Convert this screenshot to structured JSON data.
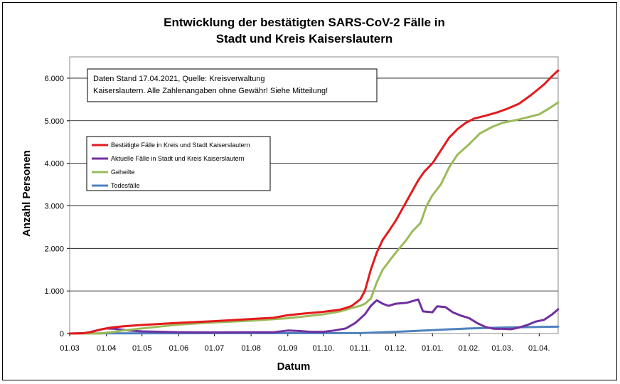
{
  "chart_data": {
    "type": "line",
    "title_lines": [
      "Entwicklung der bestätigten SARS-CoV-2 Fälle in",
      "Stadt und Kreis Kaiserslautern"
    ],
    "xlabel": "Datum",
    "ylabel": "Anzahl Personen",
    "ylim": [
      0,
      6500
    ],
    "y_ticks": [
      0,
      1000,
      2000,
      3000,
      4000,
      5000,
      6000
    ],
    "y_tick_labels": [
      "0",
      "1.000",
      "2.000",
      "3.000",
      "4.000",
      "5.000",
      "6.000"
    ],
    "x_range": [
      "2020-03-01",
      "2021-04-17"
    ],
    "x_ticks": [
      "2020-03-01",
      "2020-04-01",
      "2020-05-01",
      "2020-06-01",
      "2020-07-01",
      "2020-08-01",
      "2020-09-01",
      "2020-10-01",
      "2020-11-01",
      "2020-12-01",
      "2021-01-01",
      "2021-02-01",
      "2021-03-01",
      "2021-04-01"
    ],
    "x_tick_labels": [
      "01.03",
      "01.04",
      "01.05",
      "01.06",
      "01.07",
      "01.08",
      "01.09",
      "01.10.",
      "01.11.",
      "01.12.",
      "01.01.",
      "01.02.",
      "01.03.",
      "01.04."
    ],
    "grid": "horizontal",
    "legend": "top-left",
    "annotation_lines": [
      "Daten Stand 17.04.2021, Quelle: Kreisverwaltung",
      "Kaiserslautern. Alle Zahlenangaben ohne Gewähr! Siehe Mitteilung!"
    ],
    "series": [
      {
        "name": "Bestätigte Fälle in Kreis und Stadt Kaiserslautern",
        "color": "#e31a1c",
        "points": [
          [
            "2020-03-01",
            0
          ],
          [
            "2020-03-12",
            5
          ],
          [
            "2020-03-20",
            40
          ],
          [
            "2020-03-28",
            100
          ],
          [
            "2020-04-05",
            140
          ],
          [
            "2020-04-15",
            170
          ],
          [
            "2020-05-01",
            200
          ],
          [
            "2020-06-01",
            250
          ],
          [
            "2020-07-01",
            290
          ],
          [
            "2020-08-01",
            340
          ],
          [
            "2020-08-20",
            370
          ],
          [
            "2020-09-01",
            430
          ],
          [
            "2020-09-15",
            470
          ],
          [
            "2020-10-01",
            510
          ],
          [
            "2020-10-15",
            560
          ],
          [
            "2020-10-20",
            600
          ],
          [
            "2020-10-25",
            650
          ],
          [
            "2020-11-01",
            800
          ],
          [
            "2020-11-05",
            1000
          ],
          [
            "2020-11-10",
            1500
          ],
          [
            "2020-11-15",
            1900
          ],
          [
            "2020-11-20",
            2200
          ],
          [
            "2020-11-25",
            2400
          ],
          [
            "2020-12-01",
            2650
          ],
          [
            "2020-12-05",
            2850
          ],
          [
            "2020-12-10",
            3100
          ],
          [
            "2020-12-15",
            3350
          ],
          [
            "2020-12-20",
            3600
          ],
          [
            "2020-12-25",
            3800
          ],
          [
            "2021-01-01",
            4000
          ],
          [
            "2021-01-08",
            4300
          ],
          [
            "2021-01-15",
            4600
          ],
          [
            "2021-01-22",
            4800
          ],
          [
            "2021-01-29",
            4950
          ],
          [
            "2021-02-05",
            5050
          ],
          [
            "2021-02-15",
            5120
          ],
          [
            "2021-02-25",
            5200
          ],
          [
            "2021-03-05",
            5280
          ],
          [
            "2021-03-15",
            5400
          ],
          [
            "2021-03-25",
            5600
          ],
          [
            "2021-04-05",
            5850
          ],
          [
            "2021-04-12",
            6050
          ],
          [
            "2021-04-17",
            6180
          ]
        ]
      },
      {
        "name": "Aktuelle Fälle in Stadt und Kreis Kaiserslautern",
        "color": "#7030a0",
        "points": [
          [
            "2020-03-01",
            0
          ],
          [
            "2020-03-15",
            10
          ],
          [
            "2020-03-25",
            80
          ],
          [
            "2020-04-01",
            120
          ],
          [
            "2020-04-08",
            110
          ],
          [
            "2020-04-20",
            70
          ],
          [
            "2020-05-01",
            50
          ],
          [
            "2020-06-01",
            30
          ],
          [
            "2020-07-01",
            25
          ],
          [
            "2020-08-01",
            30
          ],
          [
            "2020-08-20",
            30
          ],
          [
            "2020-09-01",
            70
          ],
          [
            "2020-09-10",
            60
          ],
          [
            "2020-09-20",
            40
          ],
          [
            "2020-10-01",
            40
          ],
          [
            "2020-10-10",
            70
          ],
          [
            "2020-10-20",
            120
          ],
          [
            "2020-10-28",
            250
          ],
          [
            "2020-11-05",
            450
          ],
          [
            "2020-11-10",
            650
          ],
          [
            "2020-11-15",
            780
          ],
          [
            "2020-11-20",
            700
          ],
          [
            "2020-11-25",
            650
          ],
          [
            "2020-12-01",
            700
          ],
          [
            "2020-12-10",
            720
          ],
          [
            "2020-12-15",
            760
          ],
          [
            "2020-12-20",
            800
          ],
          [
            "2020-12-24",
            520
          ],
          [
            "2021-01-01",
            500
          ],
          [
            "2021-01-05",
            640
          ],
          [
            "2021-01-12",
            620
          ],
          [
            "2021-01-18",
            500
          ],
          [
            "2021-01-25",
            420
          ],
          [
            "2021-02-01",
            360
          ],
          [
            "2021-02-08",
            240
          ],
          [
            "2021-02-15",
            150
          ],
          [
            "2021-02-22",
            110
          ],
          [
            "2021-03-01",
            110
          ],
          [
            "2021-03-08",
            100
          ],
          [
            "2021-03-15",
            140
          ],
          [
            "2021-03-22",
            200
          ],
          [
            "2021-03-29",
            280
          ],
          [
            "2021-04-05",
            320
          ],
          [
            "2021-04-12",
            450
          ],
          [
            "2021-04-17",
            570
          ]
        ]
      },
      {
        "name": "Geheilte",
        "color": "#9bbb59",
        "points": [
          [
            "2020-03-01",
            0
          ],
          [
            "2020-03-25",
            0
          ],
          [
            "2020-04-05",
            30
          ],
          [
            "2020-04-15",
            70
          ],
          [
            "2020-05-01",
            120
          ],
          [
            "2020-06-01",
            210
          ],
          [
            "2020-07-01",
            260
          ],
          [
            "2020-08-01",
            300
          ],
          [
            "2020-09-01",
            360
          ],
          [
            "2020-10-01",
            450
          ],
          [
            "2020-10-15",
            520
          ],
          [
            "2020-10-25",
            600
          ],
          [
            "2020-11-01",
            650
          ],
          [
            "2020-11-05",
            700
          ],
          [
            "2020-11-10",
            820
          ],
          [
            "2020-11-15",
            1200
          ],
          [
            "2020-11-20",
            1500
          ],
          [
            "2020-12-01",
            1900
          ],
          [
            "2020-12-10",
            2200
          ],
          [
            "2020-12-15",
            2400
          ],
          [
            "2020-12-22",
            2600
          ],
          [
            "2020-12-27",
            3000
          ],
          [
            "2021-01-01",
            3250
          ],
          [
            "2021-01-08",
            3500
          ],
          [
            "2021-01-15",
            3900
          ],
          [
            "2021-01-22",
            4200
          ],
          [
            "2021-02-01",
            4450
          ],
          [
            "2021-02-10",
            4700
          ],
          [
            "2021-02-20",
            4850
          ],
          [
            "2021-03-01",
            4950
          ],
          [
            "2021-03-15",
            5030
          ],
          [
            "2021-04-01",
            5150
          ],
          [
            "2021-04-10",
            5300
          ],
          [
            "2021-04-17",
            5430
          ]
        ]
      },
      {
        "name": "Todesfälle",
        "color": "#4f81bd",
        "points": [
          [
            "2020-03-01",
            0
          ],
          [
            "2020-04-01",
            5
          ],
          [
            "2020-07-01",
            8
          ],
          [
            "2020-11-01",
            10
          ],
          [
            "2020-12-01",
            40
          ],
          [
            "2021-01-01",
            80
          ],
          [
            "2021-02-01",
            120
          ],
          [
            "2021-03-01",
            140
          ],
          [
            "2021-04-01",
            155
          ],
          [
            "2021-04-17",
            160
          ]
        ]
      }
    ]
  }
}
